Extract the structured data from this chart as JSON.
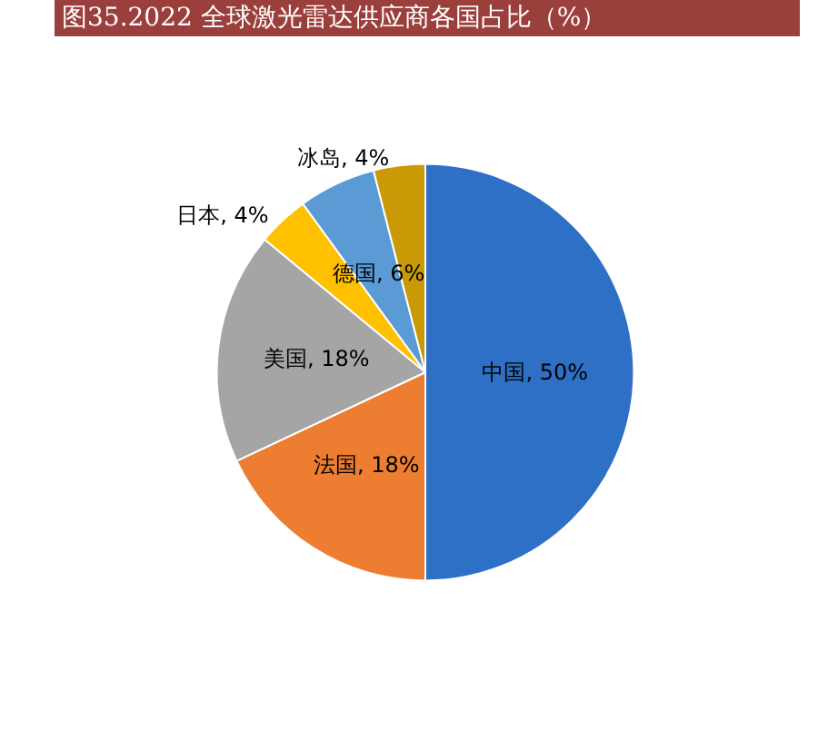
{
  "chart_data": {
    "type": "pie",
    "title": "图35.2022 全球激光雷达供应商各国占比（%）",
    "categories": [
      "中国",
      "法国",
      "美国",
      "日本",
      "德国",
      "冰岛"
    ],
    "values": [
      50,
      18,
      18,
      4,
      6,
      4
    ],
    "value_labels": [
      "50%",
      "18%",
      "18%",
      "4%",
      "6%",
      "4%"
    ],
    "colors": [
      "#2e70c5",
      "#ed7d31",
      "#a5a5a5",
      "#ffc000",
      "#5b9bd5",
      "#c99a06"
    ],
    "legend": false
  }
}
